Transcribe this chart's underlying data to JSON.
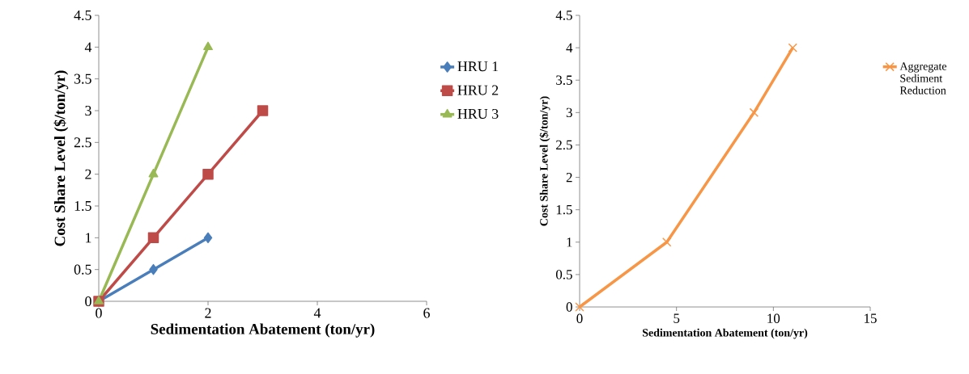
{
  "chart_data": [
    {
      "type": "line",
      "xlabel": "Sedimentation Abatement (ton/yr)",
      "ylabel": "Cost Share Level ($/ton/yr)",
      "xlim": [
        0,
        6
      ],
      "xticks": [
        0,
        2,
        4,
        6
      ],
      "ylim": [
        0,
        4.5
      ],
      "yticks": [
        0,
        0.5,
        1,
        1.5,
        2,
        2.5,
        3,
        3.5,
        4,
        4.5
      ],
      "legend": "right",
      "grid": false,
      "series": [
        {
          "name": "HRU 1",
          "color": "#4a7ebb",
          "marker": "diamond",
          "x": [
            0,
            1,
            2
          ],
          "values": [
            0,
            0.5,
            1
          ]
        },
        {
          "name": "HRU 2",
          "color": "#be4b48",
          "marker": "square",
          "x": [
            0,
            1,
            2,
            3
          ],
          "values": [
            0,
            1,
            2,
            3
          ]
        },
        {
          "name": "HRU 3",
          "color": "#98b954",
          "marker": "triangle",
          "x": [
            0,
            1,
            2
          ],
          "values": [
            0,
            2,
            4
          ]
        }
      ]
    },
    {
      "type": "line",
      "xlabel": "Sedimentation Abatement (ton/yr)",
      "ylabel": "Cost Share Level ($/ton/yr)",
      "xlim": [
        0,
        15
      ],
      "xticks": [
        0,
        5,
        10,
        15
      ],
      "ylim": [
        0,
        4.5
      ],
      "yticks": [
        0,
        0.5,
        1,
        1.5,
        2,
        2.5,
        3,
        3.5,
        4,
        4.5
      ],
      "legend": "right",
      "grid": false,
      "series": [
        {
          "name": "Aggregate Sediment Reduction",
          "color": "#f79646",
          "marker": "cross",
          "x": [
            0,
            4.5,
            9,
            11
          ],
          "values": [
            0,
            1,
            3,
            4
          ]
        }
      ]
    }
  ]
}
